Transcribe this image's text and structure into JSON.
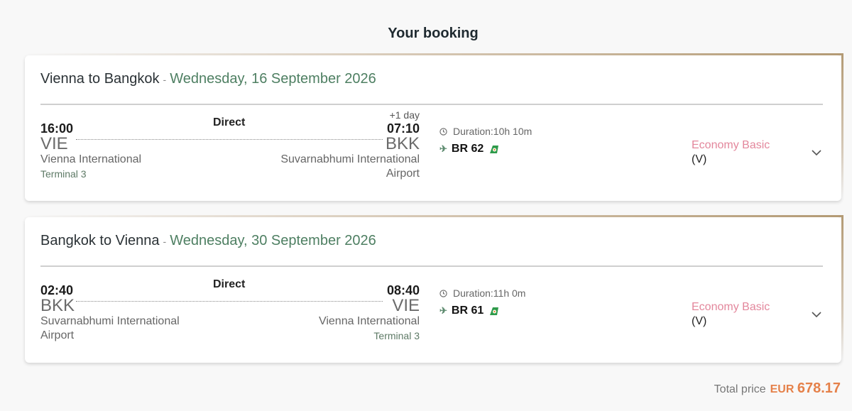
{
  "page": {
    "title": "Your booking"
  },
  "colors": {
    "date": "#4e7f62",
    "fare": "#e3879c",
    "price": "#e5814a",
    "accent_border": "#b39a74"
  },
  "segments": [
    {
      "route": "Vienna to Bangkok",
      "separator": "-",
      "date": "Wednesday, 16 September 2026",
      "stops": "Direct",
      "departure": {
        "time": "16:00",
        "code": "VIE",
        "airport": "Vienna International",
        "terminal": "Terminal 3"
      },
      "arrival": {
        "day_offset": "+1 day",
        "time": "07:10",
        "code": "BKK",
        "airport": "Suvarnabhumi International Airport",
        "terminal": ""
      },
      "duration": "Duration:10h 10m",
      "flight": "BR 62",
      "fare_name": "Economy Basic",
      "fare_class": "(V)"
    },
    {
      "route": "Bangkok to Vienna",
      "separator": "-",
      "date": "Wednesday, 30 September 2026",
      "stops": "Direct",
      "departure": {
        "time": "02:40",
        "code": "BKK",
        "airport": "Suvarnabhumi International Airport",
        "terminal": ""
      },
      "arrival": {
        "day_offset": "",
        "time": "08:40",
        "code": "VIE",
        "airport": "Vienna International",
        "terminal": "Terminal 3"
      },
      "duration": "Duration:11h 0m",
      "flight": "BR 61",
      "fare_name": "Economy Basic",
      "fare_class": "(V)"
    }
  ],
  "total": {
    "label": "Total price",
    "currency": "EUR",
    "amount": "678.17"
  },
  "icons": {
    "duration": "clock-icon",
    "flight": "airplane-icon",
    "airline": "airline-logo-icon",
    "expand": "chevron-down-icon"
  }
}
